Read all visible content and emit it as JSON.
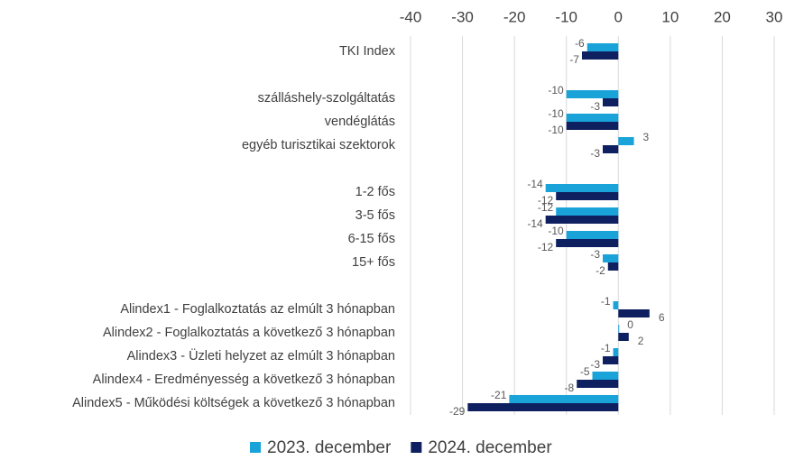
{
  "chart_data": {
    "type": "bar",
    "orientation": "horizontal",
    "categories": [
      "TKI Index",
      null,
      "szálláshely-szolgáltatás",
      "vendéglátás",
      "egyéb turisztikai szektorok",
      null,
      "1-2 fős",
      "3-5 fős",
      "6-15 fős",
      "15+ fős",
      null,
      "Alindex1 - Foglalkoztatás az elmúlt 3 hónapban",
      "Alindex2 -  Foglalkoztatás a következő 3 hónapban",
      "Alindex3 - Üzleti helyzet  az elmúlt 3 hónapban",
      "Alindex4 - Eredményesség a következő 3 hónapban",
      "Alindex5 - Működési költségek a következő 3 hónapban"
    ],
    "series": [
      {
        "name": "2023. december",
        "color": "#1aa3d9",
        "values": [
          -6,
          null,
          -10,
          -10,
          3,
          null,
          -14,
          -12,
          -10,
          -3,
          null,
          -1,
          0,
          -1,
          -5,
          -21
        ]
      },
      {
        "name": "2024. december",
        "color": "#0e2060",
        "values": [
          -7,
          null,
          -3,
          -10,
          -3,
          null,
          -12,
          -14,
          -12,
          -2,
          null,
          6,
          2,
          -3,
          -8,
          -29
        ]
      }
    ],
    "xlim": [
      -40,
      30
    ],
    "xticks": [
      -40,
      -30,
      -20,
      -10,
      0,
      10,
      20,
      30
    ],
    "grid": true,
    "legend": "bottom"
  }
}
